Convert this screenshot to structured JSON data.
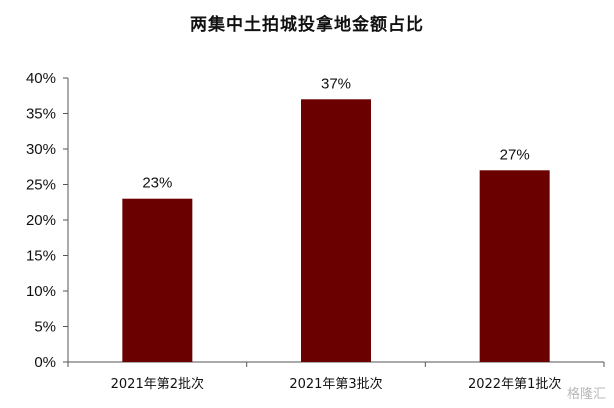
{
  "chart_data": {
    "type": "bar",
    "title": "两集中土拍城投拿地金额占比",
    "categories": [
      "2021年第2批次",
      "2021年第3批次",
      "2022年第1批次"
    ],
    "values": [
      23,
      37,
      27
    ],
    "data_labels": [
      "23%",
      "37%",
      "27%"
    ],
    "ylim": [
      0,
      40
    ],
    "yticks": [
      "0%",
      "5%",
      "10%",
      "15%",
      "20%",
      "25%",
      "30%",
      "35%",
      "40%"
    ],
    "xlabel": "",
    "ylabel": "",
    "grid": false,
    "legend": "none",
    "bar_color": "#6b0000"
  },
  "watermark": "格隆汇"
}
